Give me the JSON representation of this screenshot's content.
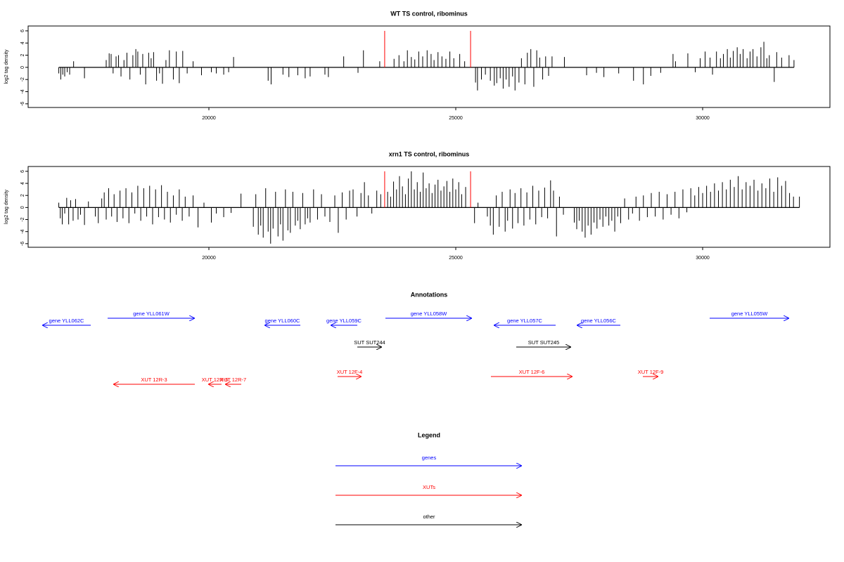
{
  "chart_data": [
    {
      "type": "spike",
      "title": "WT TS control, ribominus",
      "y_label": "log2 tag density",
      "xlim": [
        16339,
        32578
      ],
      "ylim": [
        -6.6,
        6.8
      ],
      "xticks": [
        20000,
        25000,
        30000
      ],
      "yticks": [
        -6,
        -4,
        -2,
        0,
        2,
        4,
        6
      ],
      "color": "#000000",
      "marker_color": "#ff0000",
      "marker_x": [
        23560,
        25300
      ],
      "marker_values": [
        6,
        6
      ],
      "x": [
        16960,
        17000,
        17040,
        17080,
        17130,
        17180,
        17260,
        17480,
        17920,
        17980,
        18020,
        18060,
        18120,
        18170,
        18220,
        18280,
        18340,
        18400,
        18460,
        18520,
        18560,
        18610,
        18660,
        18720,
        18780,
        18830,
        18880,
        18940,
        19000,
        19060,
        19130,
        19200,
        19280,
        19340,
        19400,
        19470,
        19560,
        19680,
        19850,
        20050,
        20150,
        20300,
        20400,
        20500,
        21200,
        21260,
        21500,
        21620,
        21800,
        21950,
        22050,
        22350,
        22420,
        22730,
        23020,
        23130,
        23460,
        23750,
        23850,
        23950,
        24020,
        24100,
        24170,
        24250,
        24330,
        24420,
        24500,
        24560,
        24640,
        24720,
        24800,
        24880,
        24960,
        25080,
        25180,
        25400,
        25440,
        25520,
        25600,
        25700,
        25780,
        25830,
        25900,
        25960,
        26020,
        26080,
        26150,
        26200,
        26280,
        26330,
        26400,
        26450,
        26520,
        26580,
        26640,
        26700,
        26760,
        26820,
        26880,
        26950,
        27200,
        27650,
        27850,
        28000,
        28300,
        28600,
        28800,
        28950,
        29150,
        29400,
        29450,
        29700,
        29850,
        29950,
        30050,
        30150,
        30200,
        30280,
        30360,
        30420,
        30500,
        30560,
        30620,
        30700,
        30760,
        30820,
        30900,
        30960,
        31020,
        31100,
        31180,
        31240,
        31300,
        31350,
        31450,
        31500,
        31600,
        31750,
        31850
      ],
      "values": [
        -1.0,
        -2.0,
        -1.2,
        -1.5,
        -0.8,
        -1.2,
        1.0,
        -1.8,
        1.2,
        2.3,
        2.2,
        -1.0,
        1.8,
        2.0,
        -1.5,
        1.2,
        2.4,
        -2.0,
        2.0,
        3.0,
        2.6,
        -1.2,
        2.2,
        -2.8,
        2.4,
        1.5,
        2.5,
        -2.2,
        -1.0,
        -2.7,
        1.2,
        2.8,
        -2.0,
        2.6,
        -2.6,
        2.7,
        -1.0,
        1.0,
        -1.3,
        -0.8,
        -1.0,
        -1.2,
        -0.8,
        1.7,
        -2.2,
        -2.8,
        -1.2,
        -1.6,
        -1.3,
        -1.8,
        -1.5,
        -1.2,
        -1.6,
        1.8,
        -0.9,
        2.8,
        1.0,
        1.4,
        2.0,
        1.0,
        2.8,
        1.7,
        1.3,
        2.6,
        1.8,
        2.8,
        2.2,
        1.2,
        2.5,
        1.8,
        1.4,
        2.6,
        1.5,
        2.2,
        1.0,
        -2.5,
        -3.8,
        -2.0,
        -1.2,
        -2.2,
        -3.0,
        -2.6,
        -1.8,
        -3.5,
        -2.0,
        -3.2,
        -1.5,
        -3.8,
        -2.5,
        1.5,
        -2.8,
        2.4,
        3.0,
        -3.2,
        2.8,
        1.6,
        -2.0,
        1.8,
        -1.4,
        1.8,
        1.7,
        -1.3,
        -0.9,
        -1.6,
        -1.0,
        -2.2,
        -2.8,
        -1.4,
        -0.9,
        2.2,
        1.0,
        2.3,
        -0.8,
        1.5,
        2.6,
        1.6,
        -1.2,
        2.6,
        1.5,
        2.2,
        3.0,
        1.6,
        2.7,
        3.3,
        2.2,
        3.0,
        1.5,
        2.6,
        3.0,
        1.8,
        3.3,
        4.2,
        1.5,
        2.0,
        -2.4,
        2.5,
        1.6,
        2.0,
        1.2
      ]
    },
    {
      "type": "spike",
      "title": "xrn1 TS control, ribominus",
      "y_label": "log2 tag density",
      "xlim": [
        16339,
        32578
      ],
      "ylim": [
        -6.6,
        6.8
      ],
      "xticks": [
        20000,
        25000,
        30000
      ],
      "yticks": [
        -6,
        -4,
        -2,
        0,
        2,
        4,
        6
      ],
      "color": "#000000",
      "marker_color": "#ff0000",
      "marker_x": [
        23560,
        25300
      ],
      "marker_values": [
        6,
        6
      ],
      "x": [
        16960,
        16990,
        17030,
        17080,
        17120,
        17160,
        17200,
        17250,
        17300,
        17350,
        17400,
        17480,
        17560,
        17700,
        17760,
        17830,
        17880,
        17920,
        17970,
        18030,
        18080,
        18140,
        18200,
        18260,
        18320,
        18380,
        18440,
        18500,
        18560,
        18620,
        18680,
        18740,
        18800,
        18860,
        18920,
        18980,
        19040,
        19100,
        19160,
        19220,
        19280,
        19340,
        19400,
        19460,
        19520,
        19600,
        19680,
        19780,
        19900,
        20050,
        20150,
        20300,
        20450,
        20650,
        20900,
        20950,
        21000,
        21050,
        21100,
        21150,
        21200,
        21250,
        21300,
        21350,
        21400,
        21450,
        21500,
        21550,
        21600,
        21650,
        21700,
        21750,
        21800,
        21850,
        21900,
        21950,
        22000,
        22050,
        22120,
        22200,
        22280,
        22350,
        22450,
        22550,
        22620,
        22700,
        22780,
        22850,
        22920,
        23000,
        23080,
        23150,
        23230,
        23300,
        23400,
        23480,
        23620,
        23680,
        23740,
        23800,
        23860,
        23920,
        23980,
        24040,
        24100,
        24160,
        24220,
        24280,
        24340,
        24400,
        24460,
        24520,
        24580,
        24640,
        24700,
        24760,
        24820,
        24880,
        24940,
        25000,
        25060,
        25120,
        25200,
        25380,
        25450,
        25640,
        25700,
        25760,
        25820,
        25880,
        25940,
        26000,
        26050,
        26100,
        26150,
        26200,
        26260,
        26320,
        26380,
        26440,
        26500,
        26560,
        26620,
        26680,
        26740,
        26800,
        26860,
        26920,
        26980,
        27040,
        27100,
        27180,
        27400,
        27450,
        27500,
        27560,
        27620,
        27680,
        27740,
        27800,
        27860,
        27920,
        27980,
        28040,
        28100,
        28160,
        28220,
        28280,
        28340,
        28420,
        28500,
        28580,
        28650,
        28720,
        28800,
        28880,
        28960,
        29040,
        29120,
        29200,
        29280,
        29360,
        29440,
        29520,
        29600,
        29680,
        29760,
        29840,
        29920,
        30000,
        30080,
        30160,
        30240,
        30320,
        30400,
        30480,
        30560,
        30640,
        30720,
        30800,
        30880,
        30960,
        31040,
        31120,
        31200,
        31280,
        31360,
        31440,
        31520,
        31600,
        31680,
        31760,
        31840,
        31960
      ],
      "values": [
        0.8,
        -1.8,
        -2.8,
        -1.0,
        1.6,
        -2.8,
        1.2,
        -2.2,
        1.4,
        -2.0,
        -1.2,
        -2.9,
        1.0,
        -1.5,
        -2.6,
        1.5,
        2.5,
        -2.0,
        3.2,
        -1.5,
        2.2,
        -2.4,
        2.8,
        -1.8,
        3.2,
        -2.6,
        2.5,
        -1.0,
        3.6,
        -2.2,
        3.2,
        -1.5,
        3.6,
        -2.8,
        3.0,
        -1.6,
        3.7,
        -2.0,
        2.6,
        -2.5,
        2.0,
        -1.2,
        3.0,
        -2.2,
        1.8,
        -1.5,
        2.0,
        -3.3,
        0.8,
        -2.5,
        -1.0,
        -1.6,
        -0.9,
        2.3,
        -3.2,
        2.2,
        -4.5,
        -3.0,
        -5.0,
        3.2,
        -4.0,
        -6.0,
        -3.5,
        2.6,
        -4.8,
        -2.8,
        -5.5,
        3.0,
        -3.8,
        -4.2,
        2.6,
        -3.0,
        -2.2,
        -3.6,
        2.4,
        -2.8,
        -1.8,
        -2.5,
        3.0,
        -2.0,
        2.2,
        -1.5,
        -2.4,
        2.0,
        -4.2,
        2.5,
        -2.0,
        2.8,
        3.0,
        -1.5,
        2.4,
        4.2,
        2.0,
        -1.0,
        2.8,
        2.2,
        2.6,
        1.8,
        4.3,
        3.0,
        5.2,
        3.5,
        2.2,
        4.8,
        6.0,
        3.0,
        4.2,
        2.6,
        5.8,
        3.2,
        4.0,
        2.4,
        3.8,
        4.6,
        2.8,
        3.5,
        4.4,
        2.6,
        4.8,
        3.0,
        4.2,
        2.2,
        3.4,
        -2.6,
        0.8,
        -1.5,
        -3.0,
        -4.5,
        2.0,
        -3.2,
        2.6,
        -4.0,
        -2.2,
        3.0,
        -3.5,
        2.4,
        -2.6,
        3.2,
        -3.0,
        2.5,
        -2.0,
        3.6,
        -2.8,
        2.8,
        -1.6,
        3.3,
        -1.8,
        4.5,
        2.8,
        -4.8,
        1.8,
        -1.2,
        -2.5,
        -3.6,
        -2.2,
        -4.0,
        -5.0,
        -3.0,
        -4.5,
        -2.5,
        -3.5,
        -2.0,
        -3.2,
        -1.5,
        -3.0,
        -2.2,
        -4.0,
        -1.5,
        -2.6,
        1.5,
        -2.0,
        -1.0,
        1.8,
        -2.2,
        2.0,
        -1.6,
        2.4,
        -1.5,
        2.6,
        -2.0,
        2.2,
        -1.2,
        2.6,
        -1.8,
        3.0,
        -0.8,
        3.2,
        2.0,
        3.4,
        2.4,
        3.6,
        2.6,
        4.0,
        2.8,
        4.2,
        3.0,
        4.6,
        3.4,
        5.2,
        3.0,
        4.2,
        3.6,
        4.6,
        2.8,
        4.0,
        3.2,
        4.8,
        2.6,
        5.0,
        3.6,
        4.4,
        2.4,
        1.8,
        1.8
      ]
    },
    {
      "type": "annotations",
      "title": "Annotations",
      "xlim": [
        16339,
        32578
      ],
      "features": [
        {
          "label": "gene YLL062C",
          "kind": "gene",
          "strand": "-",
          "color": "#0000ff",
          "start": 16624,
          "end": 17607
        },
        {
          "label": "gene YLL061W",
          "kind": "gene",
          "strand": "+",
          "color": "#0000ff",
          "start": 17949,
          "end": 19715
        },
        {
          "label": "gene YLL060C",
          "kind": "gene",
          "strand": "-",
          "color": "#0000ff",
          "start": 21125,
          "end": 21852
        },
        {
          "label": "gene YLL059C",
          "kind": "gene",
          "strand": "-",
          "color": "#0000ff",
          "start": 22464,
          "end": 23006
        },
        {
          "label": "gene YLL058W",
          "kind": "gene",
          "strand": "+",
          "color": "#0000ff",
          "start": 23575,
          "end": 25328
        },
        {
          "label": "gene YLL057C",
          "kind": "gene",
          "strand": "-",
          "color": "#0000ff",
          "start": 25769,
          "end": 27023
        },
        {
          "label": "gene YLL056C",
          "kind": "gene",
          "strand": "-",
          "color": "#0000ff",
          "start": 27450,
          "end": 28333
        },
        {
          "label": "gene YLL055W",
          "kind": "gene",
          "strand": "+",
          "color": "#0000ff",
          "start": 30142,
          "end": 31752
        },
        {
          "label": "SUT SUT244",
          "kind": "other",
          "strand": "+",
          "color": "#000000",
          "start": 23006,
          "end": 23504
        },
        {
          "label": "SUT SUT245",
          "kind": "other",
          "strand": "+",
          "color": "#000000",
          "start": 26225,
          "end": 27336
        },
        {
          "label": "XUT 12R-3",
          "kind": "xut",
          "strand": "-",
          "color": "#ff0000",
          "start": 18063,
          "end": 19715
        },
        {
          "label": "XUT 12R-5",
          "kind": "xut",
          "strand": "-",
          "color": "#ff0000",
          "start": 19986,
          "end": 20256
        },
        {
          "label": "XUT 12R-7",
          "kind": "xut",
          "strand": "-",
          "color": "#ff0000",
          "start": 20328,
          "end": 20655
        },
        {
          "label": "XUT 12F-4",
          "kind": "xut",
          "strand": "+",
          "color": "#ff0000",
          "start": 22607,
          "end": 23091
        },
        {
          "label": "XUT 12F-6",
          "kind": "xut",
          "strand": "+",
          "color": "#ff0000",
          "start": 25712,
          "end": 27365
        },
        {
          "label": "XUT 12F-9",
          "kind": "xut",
          "strand": "+",
          "color": "#ff0000",
          "start": 28789,
          "end": 29103
        }
      ],
      "legend_title": "Legend",
      "legend": [
        {
          "label": "genes",
          "color": "#0000ff"
        },
        {
          "label": "XUTs",
          "color": "#ff0000"
        },
        {
          "label": "other",
          "color": "#000000"
        }
      ]
    }
  ]
}
